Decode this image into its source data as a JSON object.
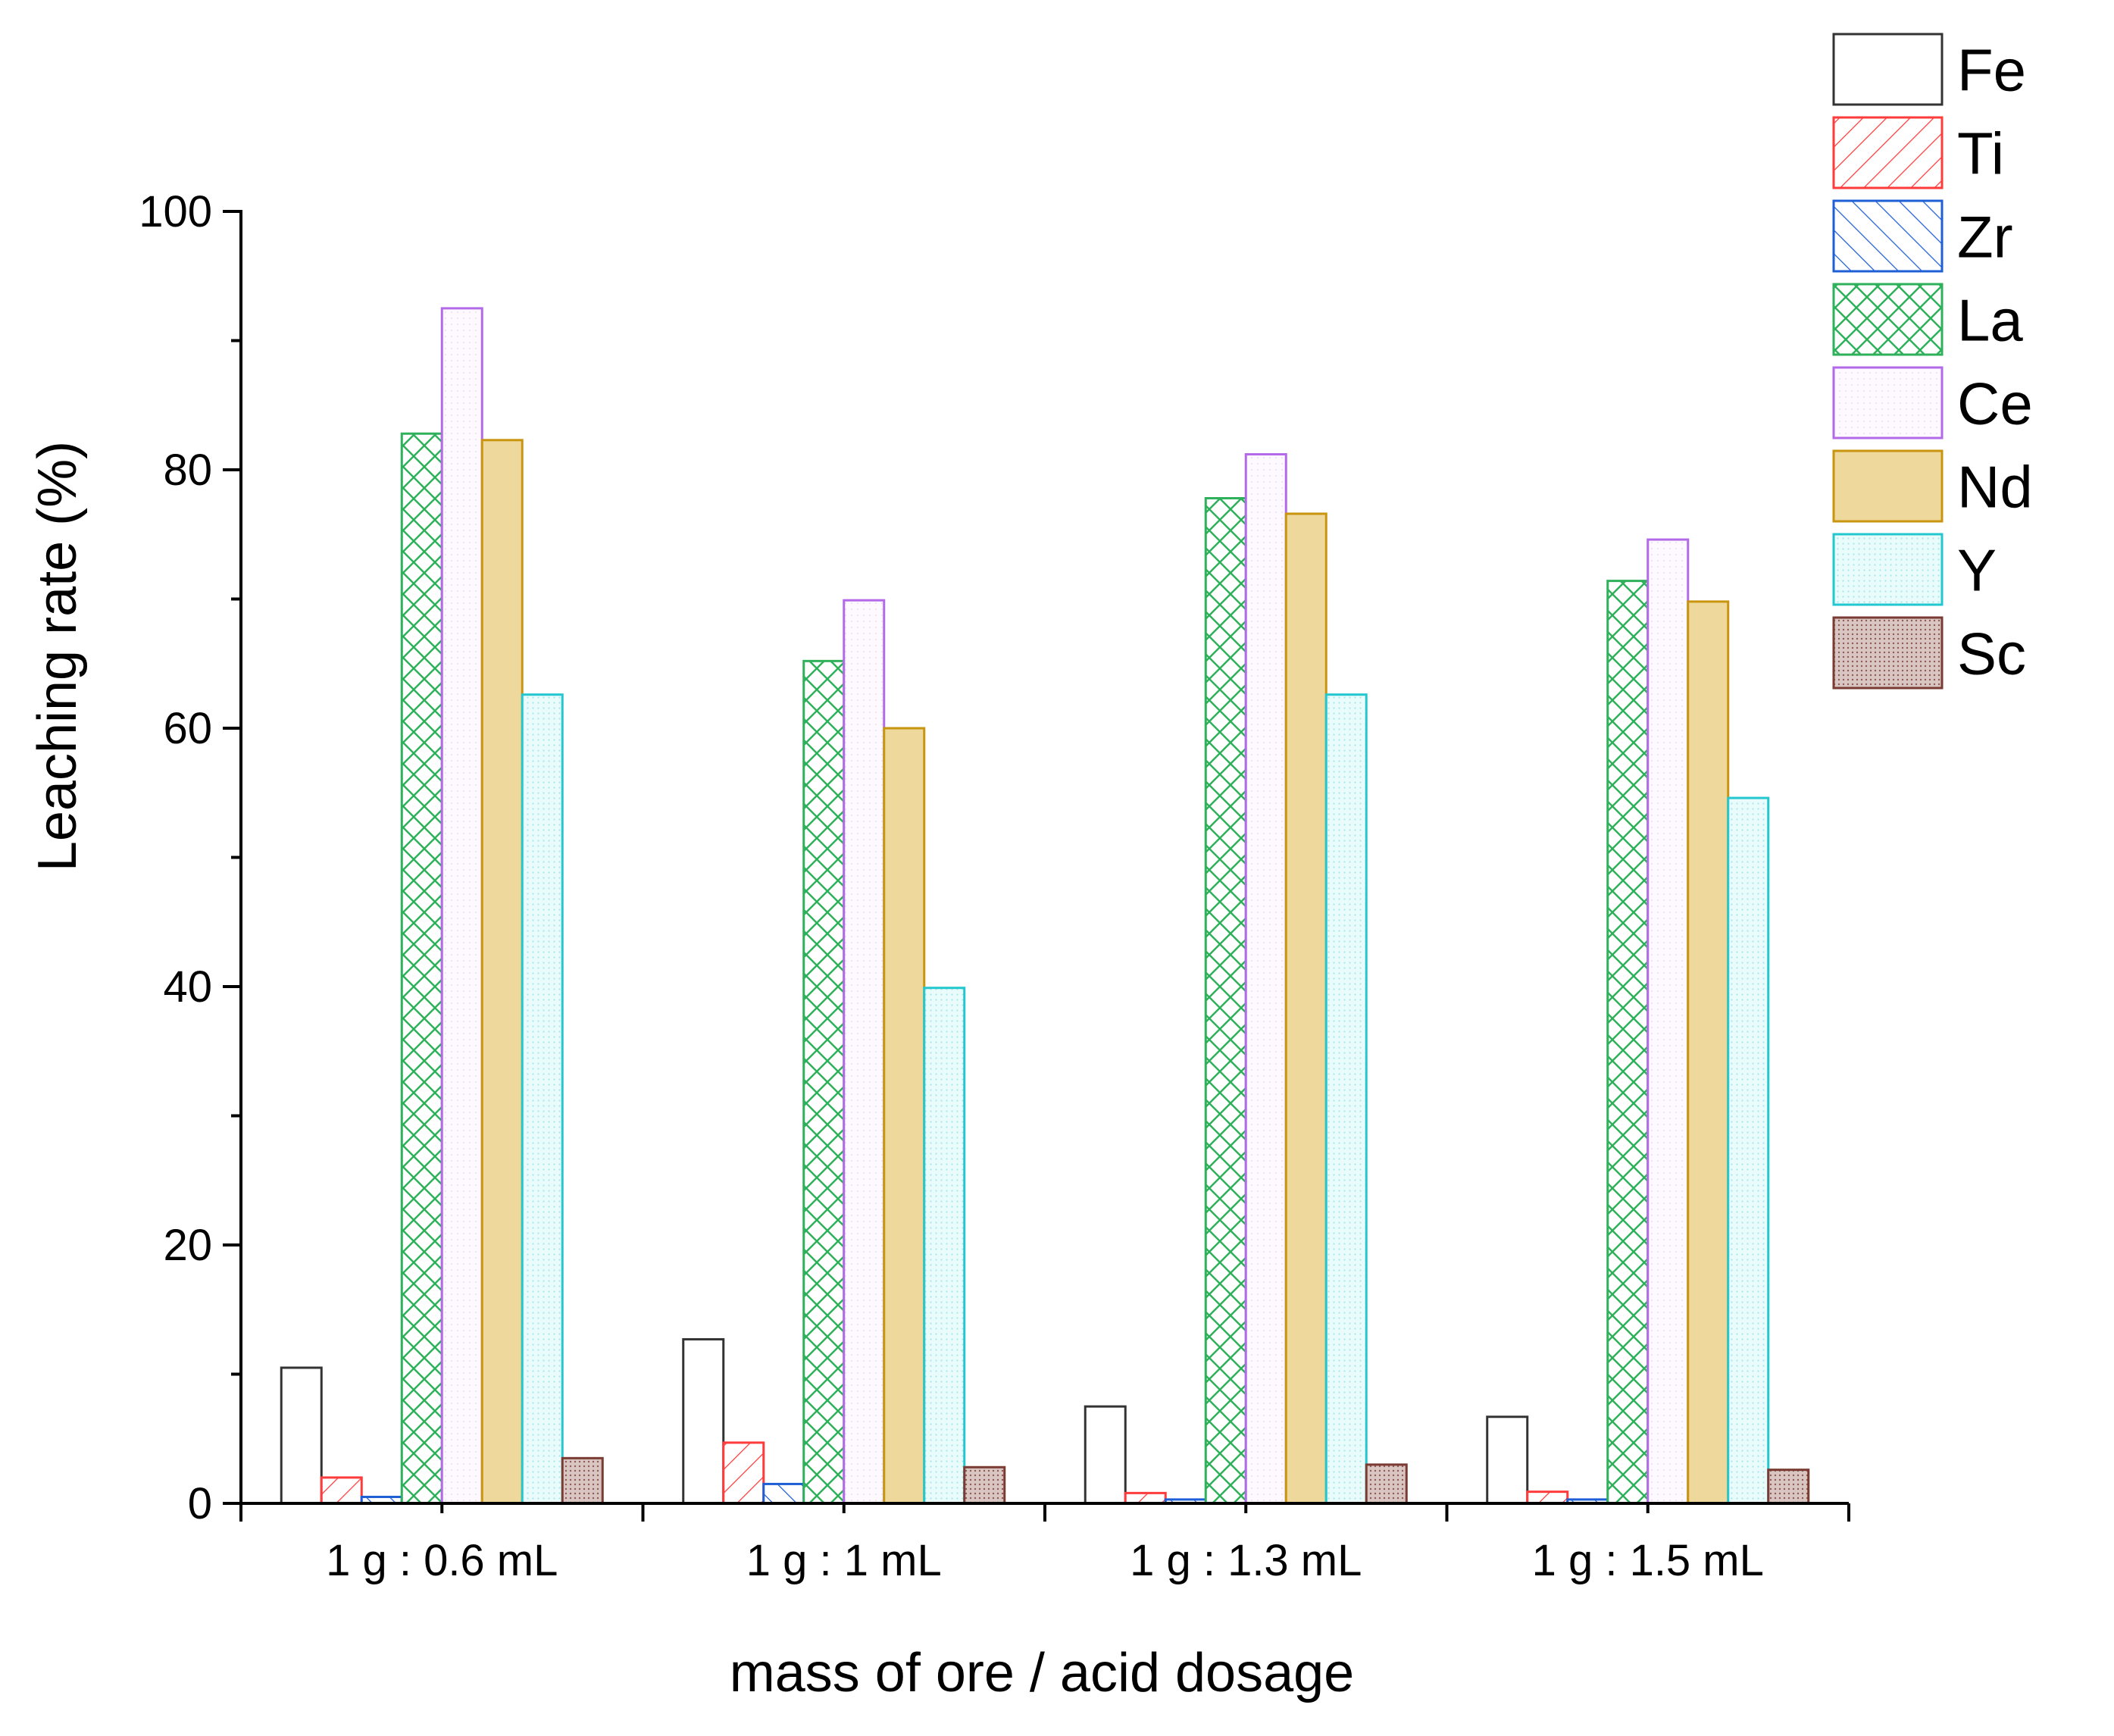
{
  "chart_data": {
    "type": "bar",
    "title": "",
    "xlabel": "mass of ore / acid dosage",
    "ylabel": "Leaching rate (%)",
    "ylim": [
      0,
      100
    ],
    "yticks": [
      "0",
      "20",
      "40",
      "60",
      "80",
      "100"
    ],
    "grid": false,
    "legend_position": "top-right",
    "categories": [
      "1 g : 0.6 mL",
      "1 g : 1 mL",
      "1 g : 1.3 mL",
      "1 g : 1.5 mL"
    ],
    "series": [
      {
        "name": "Fe",
        "values": [
          10.5,
          12.7,
          7.5,
          6.7
        ],
        "stroke": "#333333",
        "fill": "#ffffff",
        "pattern": "none"
      },
      {
        "name": "Ti",
        "values": [
          2.0,
          4.7,
          0.8,
          0.9
        ],
        "stroke": "#ff3b3b",
        "fill": "#ffffff",
        "pattern": "hatch-fwd"
      },
      {
        "name": "Zr",
        "values": [
          0.5,
          1.5,
          0.3,
          0.3
        ],
        "stroke": "#1f5fd6",
        "fill": "#ffffff",
        "pattern": "hatch-back"
      },
      {
        "name": "La",
        "values": [
          82.8,
          65.2,
          77.8,
          71.4
        ],
        "stroke": "#2fb05a",
        "fill": "#ffffff",
        "pattern": "crosshatch"
      },
      {
        "name": "Ce",
        "values": [
          92.5,
          69.9,
          81.2,
          74.6
        ],
        "stroke": "#b36ae8",
        "fill": "#fdf9ff",
        "pattern": "dots-light"
      },
      {
        "name": "Nd",
        "values": [
          82.3,
          60.0,
          76.6,
          69.8
        ],
        "stroke": "#c9950e",
        "fill": "#eed89c",
        "pattern": "solid"
      },
      {
        "name": "Y",
        "values": [
          62.6,
          39.9,
          62.6,
          54.6
        ],
        "stroke": "#22c7cf",
        "fill": "#e4fbfb",
        "pattern": "dots-cyan"
      },
      {
        "name": "Sc",
        "values": [
          3.5,
          2.8,
          3.0,
          2.6
        ],
        "stroke": "#7a3b33",
        "fill": "#d8c4c0",
        "pattern": "dots-dark"
      }
    ]
  }
}
